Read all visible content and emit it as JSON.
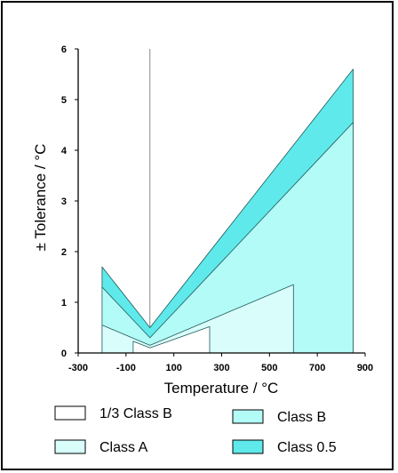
{
  "chart_data": {
    "type": "area",
    "xlabel": "Temperature / °C",
    "ylabel": "± Tolerance / °C",
    "xlim": [
      -300,
      900
    ],
    "ylim": [
      0,
      6
    ],
    "x_ticks": [
      -300,
      -100,
      100,
      300,
      500,
      700,
      900
    ],
    "y_ticks": [
      0,
      1,
      2,
      3,
      4,
      5,
      6
    ],
    "tick_labels_x": [
      "-300",
      "-100",
      "100",
      "300",
      "500",
      "700",
      "900"
    ],
    "tick_labels_y": [
      "0",
      "1",
      "2",
      "3",
      "4",
      "5",
      "6"
    ],
    "vertical_line_x": 0,
    "grid": false,
    "legend_position": "bottom",
    "series": [
      {
        "name": "Class 0.5",
        "color": "#5fe9ea",
        "x": [
          -200,
          0,
          850
        ],
        "y": [
          1.7,
          0.5,
          5.6
        ]
      },
      {
        "name": "Class B",
        "color": "#b3fbf7",
        "x": [
          -200,
          0,
          850
        ],
        "y": [
          1.3,
          0.3,
          4.55
        ]
      },
      {
        "name": "Class A",
        "color": "#d9fdfb",
        "x": [
          -200,
          0,
          600
        ],
        "y": [
          0.55,
          0.15,
          1.35
        ]
      },
      {
        "name": "1/3 Class B",
        "color": "#ffffff",
        "x": [
          -70,
          0,
          250
        ],
        "y": [
          0.23,
          0.1,
          0.52
        ]
      }
    ]
  }
}
